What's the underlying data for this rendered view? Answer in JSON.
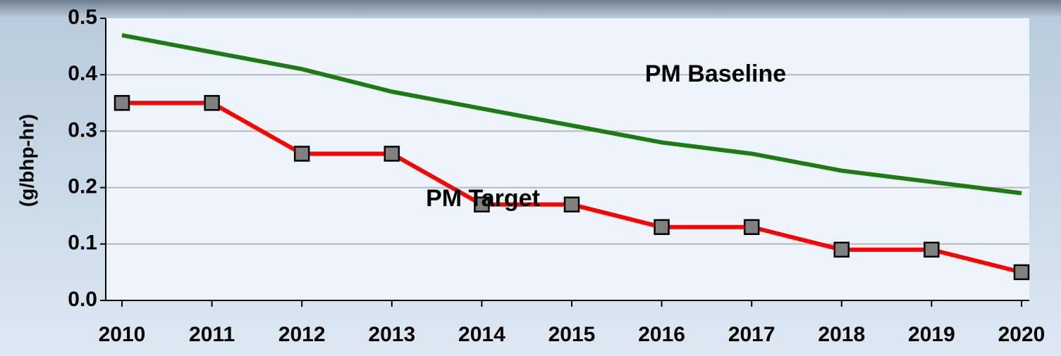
{
  "chart_data": {
    "type": "line",
    "y_label": "(g/bhp-hr)",
    "categories": [
      "2010",
      "2011",
      "2012",
      "2013",
      "2014",
      "2015",
      "2016",
      "2017",
      "2018",
      "2019",
      "2020"
    ],
    "series": [
      {
        "name": "PM Baseline",
        "color": "#1e7a12",
        "marker": false,
        "values": [
          0.47,
          0.44,
          0.41,
          0.37,
          0.34,
          0.31,
          0.28,
          0.26,
          0.23,
          0.21,
          0.19
        ]
      },
      {
        "name": "PM Target",
        "color": "#ff0000",
        "marker": true,
        "marker_color": "#808080",
        "values": [
          0.35,
          0.35,
          0.26,
          0.26,
          0.17,
          0.17,
          0.13,
          0.13,
          0.09,
          0.09,
          0.05
        ]
      }
    ],
    "ylim": [
      0,
      0.5
    ],
    "yticks": [
      {
        "value": 0,
        "label": "0.0"
      },
      0.1,
      0.2,
      0.3,
      0.4,
      0.5
    ],
    "grid": true
  }
}
